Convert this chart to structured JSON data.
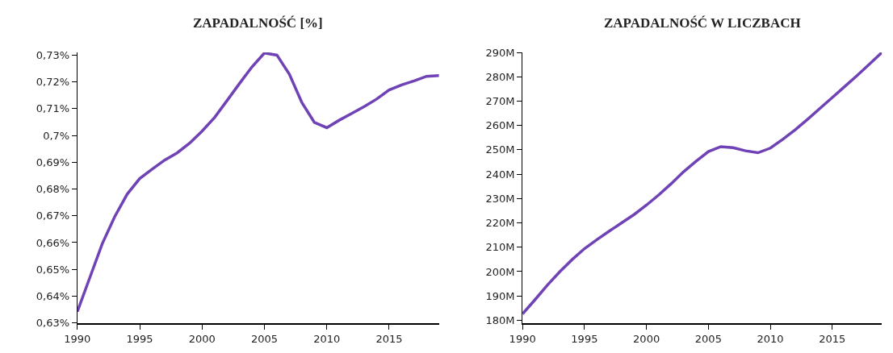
{
  "chart_data": [
    {
      "type": "line",
      "title": "ZAPADALNOŚĆ [%]",
      "x": [
        1990,
        1991,
        1992,
        1993,
        1994,
        1995,
        1996,
        1997,
        1998,
        1999,
        2000,
        2001,
        2002,
        2003,
        2004,
        2005,
        2006,
        2007,
        2008,
        2009,
        2010,
        2011,
        2012,
        2013,
        2014,
        2015,
        2016,
        2017,
        2018,
        2019
      ],
      "series": [
        {
          "color": "#6f42b5",
          "values": [
            0.6342,
            0.6469,
            0.6596,
            0.6697,
            0.6781,
            0.6839,
            0.6874,
            0.6908,
            0.6935,
            0.6971,
            0.7016,
            0.7067,
            0.713,
            0.7194,
            0.7256,
            0.7308,
            0.73,
            0.7229,
            0.7123,
            0.7049,
            0.7029,
            0.7057,
            0.7082,
            0.7108,
            0.7136,
            0.717,
            0.7189,
            0.7204,
            0.7221,
            0.7224
          ]
        }
      ],
      "xlim": [
        1990,
        2019
      ],
      "xticks": [
        1990,
        1995,
        2000,
        2005,
        2010,
        2015
      ],
      "ylim": [
        0.6299,
        0.731
      ],
      "yticks": [
        {
          "value": 0.63,
          "label": "0,63%"
        },
        {
          "value": 0.64,
          "label": "0,64%"
        },
        {
          "value": 0.65,
          "label": "0,65%"
        },
        {
          "value": 0.66,
          "label": "0,66%"
        },
        {
          "value": 0.67,
          "label": "0,67%"
        },
        {
          "value": 0.68,
          "label": "0,68%"
        },
        {
          "value": 0.69,
          "label": "0,69%"
        },
        {
          "value": 0.7,
          "label": "0,7%"
        },
        {
          "value": 0.71,
          "label": "0,71%"
        },
        {
          "value": 0.72,
          "label": "0,72%"
        },
        {
          "value": 0.73,
          "label": "0,73%"
        }
      ],
      "marker": "none",
      "line_style": "solid"
    },
    {
      "type": "line",
      "title": "ZAPADALNOŚĆ W LICZBACH",
      "x": [
        1990,
        1991,
        1992,
        1993,
        1994,
        1995,
        1996,
        1997,
        1998,
        1999,
        2000,
        2001,
        2002,
        2003,
        2004,
        2005,
        2006,
        2007,
        2008,
        2009,
        2010,
        2011,
        2012,
        2013,
        2014,
        2015,
        2016,
        2017,
        2018,
        2019
      ],
      "series": [
        {
          "color": "#6f42b5",
          "values": [
            182600000,
            188400000,
            194400000,
            199900000,
            204900000,
            209400000,
            213100000,
            216600000,
            220000000,
            223400000,
            227300000,
            231500000,
            236100000,
            241000000,
            245300000,
            249300000,
            251300000,
            250900000,
            249600000,
            248800000,
            250700000,
            254300000,
            258200000,
            262500000,
            267000000,
            271500000,
            276000000,
            280500000,
            285200000,
            290000000
          ]
        }
      ],
      "xlim": [
        1990,
        2019
      ],
      "xticks": [
        1990,
        1995,
        2000,
        2005,
        2010,
        2015
      ],
      "ylim": [
        178800000,
        290000000
      ],
      "yticks": [
        {
          "value": 180000000,
          "label": "180M"
        },
        {
          "value": 190000000,
          "label": "190M"
        },
        {
          "value": 200000000,
          "label": "200M"
        },
        {
          "value": 210000000,
          "label": "210M"
        },
        {
          "value": 220000000,
          "label": "220M"
        },
        {
          "value": 230000000,
          "label": "230M"
        },
        {
          "value": 240000000,
          "label": "240M"
        },
        {
          "value": 250000000,
          "label": "250M"
        },
        {
          "value": 260000000,
          "label": "260M"
        },
        {
          "value": 270000000,
          "label": "270M"
        },
        {
          "value": 280000000,
          "label": "280M"
        },
        {
          "value": 290000000,
          "label": "290M"
        }
      ],
      "marker": "none",
      "line_style": "solid"
    }
  ]
}
